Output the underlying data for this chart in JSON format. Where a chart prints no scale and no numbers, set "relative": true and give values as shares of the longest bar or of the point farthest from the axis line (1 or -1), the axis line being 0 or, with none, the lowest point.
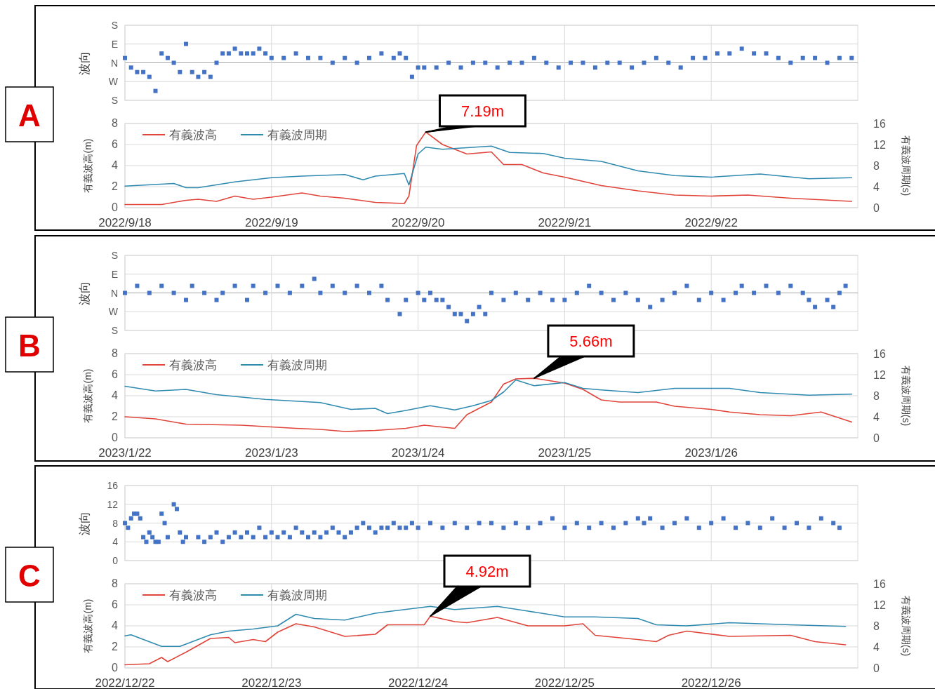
{
  "chart_data": [
    {
      "type": "scatter",
      "ylabel": "波向",
      "annotations": [
        "A"
      ],
      "xlim": [
        "2022-09-18T00:00",
        "2022-09-23T00:00"
      ],
      "xticks": [
        {
          "value": "2022-09-18",
          "label": null
        },
        {
          "value": "2022-09-19",
          "label": null
        },
        {
          "value": "2022-09-20",
          "label": null
        },
        {
          "value": "2022-09-21",
          "label": null
        },
        {
          "value": "2022-09-22",
          "label": null
        }
      ],
      "relative": true,
      "y_categories": [
        "S",
        "E",
        "N",
        "W",
        "S"
      ],
      "tick_labels": "y",
      "grid": true,
      "marker": "square",
      "series": [
        {
          "color": "#4472c4",
          "x": [
            "2022-09-18T00:00",
            "2022-09-18T01:00",
            "2022-09-18T02:00",
            "2022-09-18T03:00",
            "2022-09-18T04:00",
            "2022-09-18T05:00",
            "2022-09-18T06:00",
            "2022-09-18T07:00",
            "2022-09-18T08:00",
            "2022-09-18T09:00",
            "2022-09-18T10:00",
            "2022-09-18T11:00",
            "2022-09-18T12:00",
            "2022-09-18T13:00",
            "2022-09-18T14:00",
            "2022-09-18T15:00",
            "2022-09-18T16:00",
            "2022-09-18T17:00",
            "2022-09-18T18:00",
            "2022-09-18T19:00",
            "2022-09-18T20:00",
            "2022-09-18T21:00",
            "2022-09-18T22:00",
            "2022-09-18T23:00",
            "2022-09-19T00:00",
            "2022-09-19T02:00",
            "2022-09-19T04:00",
            "2022-09-19T06:00",
            "2022-09-19T08:00",
            "2022-09-19T10:00",
            "2022-09-19T12:00",
            "2022-09-19T14:00",
            "2022-09-19T16:00",
            "2022-09-19T18:00",
            "2022-09-19T20:00",
            "2022-09-19T21:00",
            "2022-09-19T22:00",
            "2022-09-19T23:00",
            "2022-09-20T00:00",
            "2022-09-20T01:00",
            "2022-09-20T03:00",
            "2022-09-20T05:00",
            "2022-09-20T07:00",
            "2022-09-20T09:00",
            "2022-09-20T11:00",
            "2022-09-20T13:00",
            "2022-09-20T15:00",
            "2022-09-20T17:00",
            "2022-09-20T19:00",
            "2022-09-20T21:00",
            "2022-09-20T23:00",
            "2022-09-21T01:00",
            "2022-09-21T03:00",
            "2022-09-21T05:00",
            "2022-09-21T07:00",
            "2022-09-21T09:00",
            "2022-09-21T11:00",
            "2022-09-21T13:00",
            "2022-09-21T15:00",
            "2022-09-21T17:00",
            "2022-09-21T19:00",
            "2022-09-21T21:00",
            "2022-09-21T23:00",
            "2022-09-22T01:00",
            "2022-09-22T03:00",
            "2022-09-22T05:00",
            "2022-09-22T07:00",
            "2022-09-22T09:00",
            "2022-09-22T11:00",
            "2022-09-22T13:00",
            "2022-09-22T15:00",
            "2022-09-22T17:00",
            "2022-09-22T19:00",
            "2022-09-22T21:00",
            "2022-09-22T23:00"
          ],
          "values": [
            0.17,
            -0.17,
            -0.33,
            -0.33,
            -0.5,
            -1,
            0.33,
            0.17,
            0,
            -0.33,
            0.67,
            -0.33,
            -0.5,
            -0.33,
            -0.5,
            0,
            0.33,
            0.33,
            0.5,
            0.33,
            0.33,
            0.33,
            0.5,
            0.33,
            0.17,
            0.17,
            0.33,
            0.17,
            0.17,
            0,
            0.17,
            0,
            0.17,
            0.33,
            0.17,
            0.33,
            0.17,
            -0.5,
            -0.17,
            -0.17,
            -0.17,
            0,
            -0.17,
            0,
            0,
            -0.17,
            0,
            0,
            0.17,
            0,
            -0.17,
            0,
            0,
            -0.17,
            0,
            0,
            -0.17,
            0,
            0.17,
            0,
            -0.17,
            0.17,
            0.17,
            0.33,
            0.33,
            0.5,
            0.33,
            0.33,
            0.17,
            0,
            0.17,
            0.17,
            0,
            0.17,
            0.17
          ]
        }
      ]
    },
    {
      "type": "line",
      "ylabel": "有義波高(m)",
      "y2label": "有義波周期(s)",
      "legend": "top left",
      "grid": true,
      "line_style": "solid",
      "xlim": [
        "2022-09-18T00:00",
        "2022-09-23T00:00"
      ],
      "xticks": [
        {
          "value": "2022-09-18",
          "label": "2022/9/18"
        },
        {
          "value": "2022-09-19",
          "label": "2022/9/19"
        },
        {
          "value": "2022-09-20",
          "label": "2022/9/20"
        },
        {
          "value": "2022-09-21",
          "label": "2022/9/21"
        },
        {
          "value": "2022-09-22",
          "label": "2022/9/22"
        }
      ],
      "ylim": [
        0,
        8
      ],
      "yticks": [
        0,
        2,
        4,
        6,
        8
      ],
      "y2lim": [
        0,
        16
      ],
      "y2ticks": [
        0,
        4,
        8,
        12,
        16
      ],
      "annotations": [
        {
          "text": "7.19m",
          "x": "2022-09-20T01:15",
          "y": 7.19
        }
      ],
      "series": [
        {
          "name": "有義波高",
          "color": "#e0443a",
          "x": [
            "2022-09-18T00:00",
            "2022-09-18T06:00",
            "2022-09-18T10:00",
            "2022-09-18T12:00",
            "2022-09-18T15:00",
            "2022-09-18T18:00",
            "2022-09-18T21:00",
            "2022-09-19T00:00",
            "2022-09-19T05:00",
            "2022-09-19T08:00",
            "2022-09-19T12:00",
            "2022-09-19T17:00",
            "2022-09-19T21:45",
            "2022-09-19T22:30",
            "2022-09-19T23:45",
            "2022-09-20T01:15",
            "2022-09-20T04:00",
            "2022-09-20T08:00",
            "2022-09-20T12:00",
            "2022-09-20T14:00",
            "2022-09-20T17:00",
            "2022-09-20T20:30",
            "2022-09-21T00:00",
            "2022-09-21T06:00",
            "2022-09-21T12:00",
            "2022-09-21T18:00",
            "2022-09-22T00:00",
            "2022-09-22T06:00",
            "2022-09-22T13:00",
            "2022-09-22T23:00"
          ],
          "values": [
            0.3,
            0.3,
            0.7,
            0.8,
            0.6,
            1.1,
            0.8,
            1.0,
            1.4,
            1.1,
            0.9,
            0.5,
            0.4,
            1.1,
            5.9,
            7.19,
            6.0,
            5.1,
            5.3,
            4.1,
            4.1,
            3.3,
            2.9,
            2.1,
            1.6,
            1.2,
            1.1,
            1.2,
            0.9,
            0.6
          ]
        },
        {
          "name": "有義波周期",
          "color": "#2f8ab0",
          "axis": "y2",
          "x": [
            "2022-09-18T00:00",
            "2022-09-18T08:00",
            "2022-09-18T10:00",
            "2022-09-18T12:00",
            "2022-09-18T18:00",
            "2022-09-19T00:00",
            "2022-09-19T05:00",
            "2022-09-19T12:00",
            "2022-09-19T15:00",
            "2022-09-19T17:00",
            "2022-09-19T21:45",
            "2022-09-19T22:30",
            "2022-09-20T00:00",
            "2022-09-20T01:15",
            "2022-09-20T04:00",
            "2022-09-20T12:00",
            "2022-09-20T15:00",
            "2022-09-20T20:30",
            "2022-09-21T00:00",
            "2022-09-21T06:00",
            "2022-09-21T12:00",
            "2022-09-21T18:00",
            "2022-09-22T00:00",
            "2022-09-22T08:00",
            "2022-09-22T16:00",
            "2022-09-22T23:00"
          ],
          "values": [
            4.1,
            4.6,
            3.8,
            3.8,
            4.9,
            5.7,
            6.0,
            6.3,
            5.3,
            6.0,
            6.5,
            4.3,
            10.2,
            11.5,
            11.1,
            11.7,
            10.5,
            10.3,
            9.4,
            8.8,
            7.0,
            6.1,
            5.8,
            6.4,
            5.5,
            5.7
          ]
        }
      ]
    },
    {
      "type": "scatter",
      "ylabel": "波向",
      "annotations": [
        "B"
      ],
      "xlim": [
        "2023-01-22T00:00",
        "2023-01-27T00:00"
      ],
      "xticks": [
        {
          "value": "2023-01-22",
          "label": null
        },
        {
          "value": "2023-01-23",
          "label": null
        },
        {
          "value": "2023-01-24",
          "label": null
        },
        {
          "value": "2023-01-25",
          "label": null
        },
        {
          "value": "2023-01-26",
          "label": null
        }
      ],
      "relative": true,
      "y_categories": [
        "S",
        "E",
        "N",
        "W",
        "S"
      ],
      "tick_labels": "y",
      "grid": true,
      "marker": "square",
      "series": [
        {
          "color": "#4472c4",
          "x": [
            "2023-01-22T00:00",
            "2023-01-22T02:00",
            "2023-01-22T04:00",
            "2023-01-22T06:00",
            "2023-01-22T08:00",
            "2023-01-22T10:00",
            "2023-01-22T11:00",
            "2023-01-22T13:00",
            "2023-01-22T15:00",
            "2023-01-22T16:00",
            "2023-01-22T18:00",
            "2023-01-22T20:00",
            "2023-01-22T21:00",
            "2023-01-22T23:00",
            "2023-01-23T01:00",
            "2023-01-23T03:00",
            "2023-01-23T05:00",
            "2023-01-23T07:00",
            "2023-01-23T08:00",
            "2023-01-23T10:00",
            "2023-01-23T12:00",
            "2023-01-23T14:00",
            "2023-01-23T16:00",
            "2023-01-23T18:00",
            "2023-01-23T19:00",
            "2023-01-23T21:00",
            "2023-01-23T22:00",
            "2023-01-24T00:00",
            "2023-01-24T01:00",
            "2023-01-24T02:00",
            "2023-01-24T03:00",
            "2023-01-24T04:00",
            "2023-01-24T05:00",
            "2023-01-24T06:00",
            "2023-01-24T07:00",
            "2023-01-24T08:00",
            "2023-01-24T09:00",
            "2023-01-24T10:00",
            "2023-01-24T11:00",
            "2023-01-24T12:00",
            "2023-01-24T14:00",
            "2023-01-24T16:00",
            "2023-01-24T18:00",
            "2023-01-24T20:00",
            "2023-01-24T22:00",
            "2023-01-25T00:00",
            "2023-01-25T02:00",
            "2023-01-25T04:00",
            "2023-01-25T06:00",
            "2023-01-25T08:00",
            "2023-01-25T10:00",
            "2023-01-25T12:00",
            "2023-01-25T14:00",
            "2023-01-25T16:00",
            "2023-01-25T18:00",
            "2023-01-25T20:00",
            "2023-01-25T22:00",
            "2023-01-26T00:00",
            "2023-01-26T02:00",
            "2023-01-26T04:00",
            "2023-01-26T05:00",
            "2023-01-26T07:00",
            "2023-01-26T09:00",
            "2023-01-26T11:00",
            "2023-01-26T13:00",
            "2023-01-26T15:00",
            "2023-01-26T16:00",
            "2023-01-26T17:00",
            "2023-01-26T19:00",
            "2023-01-26T20:00",
            "2023-01-26T21:00",
            "2023-01-26T22:00"
          ],
          "values": [
            0,
            0.25,
            0,
            0.25,
            0,
            -0.25,
            0.25,
            0,
            -0.25,
            0,
            0.25,
            -0.25,
            0.25,
            0,
            0.25,
            0,
            0.25,
            0.5,
            0,
            0.25,
            0,
            0.25,
            0,
            0.25,
            -0.25,
            -0.75,
            -0.25,
            0,
            -0.25,
            0,
            -0.25,
            -0.25,
            -0.5,
            -0.75,
            -0.75,
            -1,
            -0.75,
            -0.5,
            -0.75,
            0,
            -0.25,
            0,
            -0.25,
            0,
            -0.25,
            -0.25,
            0,
            0.25,
            0,
            -0.25,
            0,
            -0.25,
            -0.5,
            -0.25,
            0,
            0.25,
            -0.25,
            0,
            -0.25,
            0,
            0.25,
            0,
            0.25,
            0,
            0.25,
            0,
            -0.25,
            -0.5,
            -0.25,
            -0.5,
            0,
            0.25
          ]
        }
      ]
    },
    {
      "type": "line",
      "ylabel": "有義波高(m)",
      "y2label": "有義波周期(s)",
      "legend": "top left",
      "grid": true,
      "line_style": "solid",
      "xlim": [
        "2023-01-22T00:00",
        "2023-01-27T00:00"
      ],
      "xticks": [
        {
          "value": "2023-01-22",
          "label": "2023/1/22"
        },
        {
          "value": "2023-01-23",
          "label": "2023/1/23"
        },
        {
          "value": "2023-01-24",
          "label": "2023/1/24"
        },
        {
          "value": "2023-01-25",
          "label": "2023/1/25"
        },
        {
          "value": "2023-01-26",
          "label": "2023/1/26"
        }
      ],
      "ylim": [
        0,
        8
      ],
      "yticks": [
        0,
        2,
        4,
        6,
        8
      ],
      "y2lim": [
        0,
        16
      ],
      "y2ticks": [
        0,
        4,
        8,
        12,
        16
      ],
      "annotations": [
        {
          "text": "5.66m",
          "x": "2023-01-24T19:00",
          "y": 5.66
        }
      ],
      "series": [
        {
          "name": "有義波高",
          "color": "#e0443a",
          "x": [
            "2023-01-22T00:00",
            "2023-01-22T05:00",
            "2023-01-22T10:00",
            "2023-01-22T19:00",
            "2023-01-23T04:00",
            "2023-01-23T08:00",
            "2023-01-23T12:00",
            "2023-01-23T17:00",
            "2023-01-23T22:00",
            "2023-01-24T01:00",
            "2023-01-24T06:00",
            "2023-01-24T08:00",
            "2023-01-24T12:00",
            "2023-01-24T14:00",
            "2023-01-24T16:00",
            "2023-01-24T19:00",
            "2023-01-25T00:00",
            "2023-01-25T03:00",
            "2023-01-25T06:00",
            "2023-01-25T09:00",
            "2023-01-25T15:00",
            "2023-01-25T18:00",
            "2023-01-26T00:00",
            "2023-01-26T03:00",
            "2023-01-26T08:00",
            "2023-01-26T13:00",
            "2023-01-26T18:00",
            "2023-01-26T23:00"
          ],
          "values": [
            2.0,
            1.8,
            1.3,
            1.2,
            0.9,
            0.8,
            0.6,
            0.7,
            0.9,
            1.2,
            0.9,
            2.2,
            3.4,
            5.1,
            5.6,
            5.66,
            5.2,
            4.6,
            3.6,
            3.4,
            3.4,
            3.0,
            2.7,
            2.45,
            2.2,
            2.1,
            2.45,
            1.5
          ]
        },
        {
          "name": "有義波周期",
          "color": "#2f8ab0",
          "axis": "y2",
          "x": [
            "2023-01-22T00:00",
            "2023-01-22T05:00",
            "2023-01-22T10:00",
            "2023-01-22T15:00",
            "2023-01-22T23:00",
            "2023-01-23T08:00",
            "2023-01-23T13:00",
            "2023-01-23T17:00",
            "2023-01-23T19:00",
            "2023-01-23T22:00",
            "2023-01-24T02:00",
            "2023-01-24T06:00",
            "2023-01-24T09:00",
            "2023-01-24T12:00",
            "2023-01-24T14:00",
            "2023-01-24T16:00",
            "2023-01-24T19:00",
            "2023-01-25T00:00",
            "2023-01-25T03:00",
            "2023-01-25T06:00",
            "2023-01-25T12:00",
            "2023-01-25T18:00",
            "2023-01-26T03:00",
            "2023-01-26T08:00",
            "2023-01-26T16:00",
            "2023-01-26T23:00"
          ],
          "values": [
            9.8,
            8.9,
            9.2,
            8.2,
            7.3,
            6.7,
            5.4,
            5.6,
            4.6,
            5.2,
            6.1,
            5.3,
            6.1,
            7.1,
            8.7,
            11.0,
            9.9,
            10.5,
            9.4,
            9.1,
            8.6,
            9.4,
            9.4,
            8.6,
            8.1,
            8.3
          ]
        }
      ]
    },
    {
      "type": "scatter",
      "ylabel": "波向",
      "annotations": [
        "C"
      ],
      "xlim": [
        "2022-12-22T00:00",
        "2022-12-27T00:00"
      ],
      "xticks": [
        {
          "value": "2022-12-22",
          "label": null
        },
        {
          "value": "2022-12-23",
          "label": null
        },
        {
          "value": "2022-12-24",
          "label": null
        },
        {
          "value": "2022-12-25",
          "label": null
        },
        {
          "value": "2022-12-26",
          "label": null
        }
      ],
      "ylim": [
        0,
        16
      ],
      "yticks": [
        0,
        4,
        8,
        12,
        16
      ],
      "tick_labels": "y",
      "grid": true,
      "marker": "square",
      "series": [
        {
          "color": "#4472c4",
          "x": [
            "2022-12-22T00:00",
            "2022-12-22T00:30",
            "2022-12-22T01:00",
            "2022-12-22T01:30",
            "2022-12-22T02:00",
            "2022-12-22T02:30",
            "2022-12-22T03:00",
            "2022-12-22T03:30",
            "2022-12-22T04:00",
            "2022-12-22T04:30",
            "2022-12-22T05:00",
            "2022-12-22T05:30",
            "2022-12-22T06:00",
            "2022-12-22T06:30",
            "2022-12-22T07:00",
            "2022-12-22T08:00",
            "2022-12-22T08:30",
            "2022-12-22T09:00",
            "2022-12-22T09:30",
            "2022-12-22T10:00",
            "2022-12-22T12:00",
            "2022-12-22T13:00",
            "2022-12-22T14:00",
            "2022-12-22T15:00",
            "2022-12-22T16:00",
            "2022-12-22T17:00",
            "2022-12-22T18:00",
            "2022-12-22T19:00",
            "2022-12-22T20:00",
            "2022-12-22T21:00",
            "2022-12-22T22:00",
            "2022-12-22T23:00",
            "2022-12-23T00:00",
            "2022-12-23T01:00",
            "2022-12-23T02:00",
            "2022-12-23T03:00",
            "2022-12-23T04:00",
            "2022-12-23T05:00",
            "2022-12-23T06:00",
            "2022-12-23T07:00",
            "2022-12-23T08:00",
            "2022-12-23T09:00",
            "2022-12-23T10:00",
            "2022-12-23T11:00",
            "2022-12-23T12:00",
            "2022-12-23T13:00",
            "2022-12-23T14:00",
            "2022-12-23T15:00",
            "2022-12-23T16:00",
            "2022-12-23T17:00",
            "2022-12-23T18:00",
            "2022-12-23T19:00",
            "2022-12-23T20:00",
            "2022-12-23T21:00",
            "2022-12-23T22:00",
            "2022-12-23T23:00",
            "2022-12-24T00:00",
            "2022-12-24T02:00",
            "2022-12-24T04:00",
            "2022-12-24T06:00",
            "2022-12-24T08:00",
            "2022-12-24T10:00",
            "2022-12-24T12:00",
            "2022-12-24T14:00",
            "2022-12-24T16:00",
            "2022-12-24T18:00",
            "2022-12-24T20:00",
            "2022-12-24T22:00",
            "2022-12-25T00:00",
            "2022-12-25T02:00",
            "2022-12-25T04:00",
            "2022-12-25T06:00",
            "2022-12-25T08:00",
            "2022-12-25T10:00",
            "2022-12-25T12:00",
            "2022-12-25T13:00",
            "2022-12-25T14:00",
            "2022-12-25T16:00",
            "2022-12-25T18:00",
            "2022-12-25T20:00",
            "2022-12-25T22:00",
            "2022-12-26T00:00",
            "2022-12-26T02:00",
            "2022-12-26T04:00",
            "2022-12-26T06:00",
            "2022-12-26T08:00",
            "2022-12-26T10:00",
            "2022-12-26T12:00",
            "2022-12-26T14:00",
            "2022-12-26T16:00",
            "2022-12-26T18:00",
            "2022-12-26T20:00",
            "2022-12-26T21:00"
          ],
          "values": [
            8,
            7,
            9,
            10,
            10,
            9,
            5,
            4,
            6,
            5,
            4,
            4,
            10,
            8,
            5,
            12,
            11,
            6,
            4,
            5,
            5,
            4,
            5,
            6,
            4,
            5,
            6,
            5,
            6,
            5,
            7,
            5,
            6,
            5,
            6,
            5,
            7,
            6,
            5,
            6,
            5,
            6,
            7,
            6,
            5,
            6,
            7,
            8,
            7,
            6,
            7,
            7,
            8,
            7,
            7,
            8,
            7,
            8,
            7,
            8,
            7,
            8,
            8,
            7,
            8,
            7,
            8,
            9,
            7,
            8,
            7,
            8,
            7,
            8,
            9,
            8,
            9,
            7,
            8,
            9,
            7,
            8,
            9,
            7,
            8,
            7,
            9,
            7,
            8,
            7,
            9,
            8,
            7
          ]
        }
      ]
    },
    {
      "type": "line",
      "ylabel": "有義波高(m)",
      "y2label": "有義波周期(s)",
      "legend": "top left",
      "grid": true,
      "line_style": "solid",
      "xlim": [
        "2022-12-22T00:00",
        "2022-12-27T00:00"
      ],
      "xticks": [
        {
          "value": "2022-12-22",
          "label": "2022/12/22"
        },
        {
          "value": "2022-12-23",
          "label": "2022/12/23"
        },
        {
          "value": "2022-12-24",
          "label": "2022/12/24"
        },
        {
          "value": "2022-12-25",
          "label": "2022/12/25"
        },
        {
          "value": "2022-12-26",
          "label": "2022/12/26"
        }
      ],
      "ylim": [
        0,
        8
      ],
      "yticks": [
        0,
        2,
        4,
        6,
        8
      ],
      "y2lim": [
        0,
        16
      ],
      "y2ticks": [
        0,
        4,
        8,
        12,
        16
      ],
      "annotations": [
        {
          "text": "4.92m",
          "x": "2022-12-24T02:00",
          "y": 4.92
        }
      ],
      "series": [
        {
          "name": "有義波高",
          "color": "#e0443a",
          "x": [
            "2022-12-22T00:00",
            "2022-12-22T04:00",
            "2022-12-22T06:00",
            "2022-12-22T07:00",
            "2022-12-22T10:00",
            "2022-12-22T14:00",
            "2022-12-22T17:00",
            "2022-12-22T18:00",
            "2022-12-22T21:00",
            "2022-12-22T23:00",
            "2022-12-23T01:00",
            "2022-12-23T04:00",
            "2022-12-23T07:00",
            "2022-12-23T12:00",
            "2022-12-23T17:00",
            "2022-12-23T19:00",
            "2022-12-24T01:00",
            "2022-12-24T02:00",
            "2022-12-24T06:00",
            "2022-12-24T08:00",
            "2022-12-24T13:00",
            "2022-12-24T18:00",
            "2022-12-25T00:00",
            "2022-12-25T03:00",
            "2022-12-25T05:00",
            "2022-12-25T12:00",
            "2022-12-25T15:00",
            "2022-12-25T17:00",
            "2022-12-25T20:00",
            "2022-12-26T03:00",
            "2022-12-26T13:00",
            "2022-12-26T17:00",
            "2022-12-26T22:00"
          ],
          "values": [
            0.3,
            0.4,
            1.0,
            0.6,
            1.5,
            2.8,
            2.9,
            2.4,
            2.7,
            2.5,
            3.4,
            4.2,
            3.9,
            3.0,
            3.2,
            4.1,
            4.1,
            4.92,
            4.4,
            4.3,
            4.8,
            4.0,
            4.0,
            4.2,
            3.1,
            2.7,
            2.5,
            3.1,
            3.5,
            3.0,
            3.1,
            2.5,
            2.2
          ]
        },
        {
          "name": "有義波周期",
          "color": "#2f8ab0",
          "axis": "y2",
          "x": [
            "2022-12-22T00:00",
            "2022-12-22T01:00",
            "2022-12-22T06:00",
            "2022-12-22T09:00",
            "2022-12-22T14:00",
            "2022-12-22T17:00",
            "2022-12-22T21:00",
            "2022-12-23T01:00",
            "2022-12-23T04:00",
            "2022-12-23T07:00",
            "2022-12-23T12:00",
            "2022-12-23T17:00",
            "2022-12-23T19:00",
            "2022-12-24T02:00",
            "2022-12-24T06:00",
            "2022-12-24T13:00",
            "2022-12-24T18:00",
            "2022-12-25T00:00",
            "2022-12-25T05:00",
            "2022-12-25T12:00",
            "2022-12-25T15:00",
            "2022-12-25T20:00",
            "2022-12-26T03:00",
            "2022-12-26T13:00",
            "2022-12-26T22:00"
          ],
          "values": [
            6.1,
            6.3,
            4.1,
            4.1,
            6.3,
            7.0,
            7.4,
            8.0,
            10.2,
            9.4,
            9.1,
            10.4,
            10.7,
            11.7,
            11.1,
            11.7,
            10.8,
            9.7,
            9.7,
            9.4,
            8.2,
            8.0,
            8.6,
            8.2,
            7.9
          ]
        }
      ]
    }
  ]
}
